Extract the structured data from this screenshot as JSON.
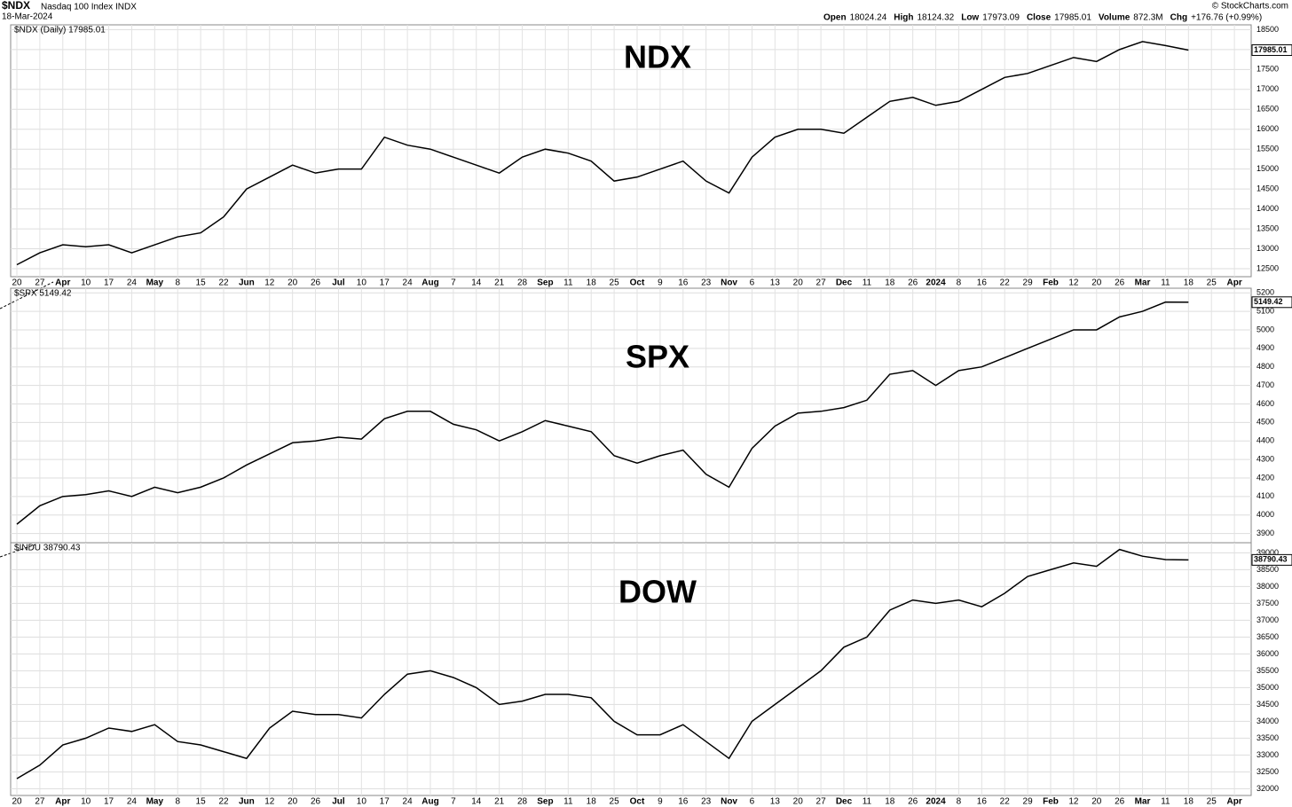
{
  "header": {
    "symbol": "$NDX",
    "name": "Nasdaq 100 Index",
    "exchange": "INDX",
    "date": "18-Mar-2024",
    "quote": [
      {
        "label": "Open",
        "value": "18024.24"
      },
      {
        "label": "High",
        "value": "18124.32"
      },
      {
        "label": "Low",
        "value": "17973.09"
      },
      {
        "label": "Close",
        "value": "17985.01"
      },
      {
        "label": "Volume",
        "value": "872.3M"
      },
      {
        "label": "Chg",
        "value": "+176.76 (+0.99%)"
      }
    ],
    "credit": "© StockCharts.com"
  },
  "chart_data": [
    {
      "type": "line",
      "title": "NDX",
      "legend": "$NDX (Daily) 17985.01",
      "last_label": "17985.01",
      "color": "#000000",
      "grid": true,
      "categories": [
        "20",
        "27",
        "Apr",
        "10",
        "17",
        "24",
        "May",
        "8",
        "15",
        "22",
        "Jun",
        "12",
        "20",
        "26",
        "Jul",
        "10",
        "17",
        "24",
        "Aug",
        "7",
        "14",
        "21",
        "28",
        "Sep",
        "11",
        "18",
        "25",
        "Oct",
        "9",
        "16",
        "23",
        "Nov",
        "6",
        "13",
        "20",
        "27",
        "Dec",
        "11",
        "18",
        "26",
        "2024",
        "8",
        "16",
        "22",
        "29",
        "Feb",
        "12",
        "20",
        "26",
        "Mar",
        "11",
        "18",
        "25",
        "Apr"
      ],
      "values": [
        12600,
        12900,
        13100,
        13050,
        13100,
        12900,
        13100,
        13300,
        13400,
        13800,
        14500,
        14800,
        15100,
        14900,
        15000,
        15000,
        15800,
        15600,
        15500,
        15300,
        15100,
        14900,
        15300,
        15500,
        15400,
        15200,
        14700,
        14800,
        15000,
        15200,
        14700,
        14400,
        15300,
        15800,
        16000,
        16000,
        15900,
        16300,
        16700,
        16800,
        16600,
        16700,
        17000,
        17300,
        17400,
        17600,
        17800,
        17700,
        18000,
        18200,
        18100,
        17985.01,
        null,
        null
      ],
      "ylim": [
        12300,
        18620
      ],
      "yticks": [
        12500,
        13000,
        13500,
        14000,
        14500,
        15000,
        15500,
        16000,
        16500,
        17000,
        17500,
        18000,
        18500
      ]
    },
    {
      "type": "line",
      "title": "SPX",
      "legend": "$SPX 5149.42",
      "last_label": "5149.42",
      "color": "#000000",
      "grid": true,
      "categories": [
        null,
        null,
        null,
        null,
        null,
        null,
        null,
        null,
        null,
        null,
        null,
        null,
        null,
        null,
        null,
        null,
        null,
        null,
        null,
        null,
        null,
        null,
        null,
        null,
        null,
        null,
        null,
        null,
        null,
        null,
        null,
        null,
        null,
        null,
        null,
        null,
        null,
        null,
        null,
        null,
        null,
        null,
        null,
        null,
        null,
        null,
        null,
        null,
        null,
        null,
        null,
        null,
        null,
        null
      ],
      "values": [
        3950,
        4050,
        4100,
        4110,
        4130,
        4100,
        4150,
        4120,
        4150,
        4200,
        4270,
        4330,
        4390,
        4400,
        4420,
        4410,
        4520,
        4560,
        4560,
        4490,
        4460,
        4400,
        4450,
        4510,
        4480,
        4450,
        4320,
        4280,
        4320,
        4350,
        4220,
        4150,
        4360,
        4480,
        4550,
        4560,
        4580,
        4620,
        4760,
        4780,
        4700,
        4780,
        4800,
        4850,
        4900,
        4950,
        5000,
        5000,
        5070,
        5100,
        5150,
        5149.42,
        null,
        null
      ],
      "ylim": [
        3850,
        5225
      ],
      "yticks": [
        3900,
        4000,
        4100,
        4200,
        4300,
        4400,
        4500,
        4600,
        4700,
        4800,
        4900,
        5000,
        5100,
        5200
      ]
    },
    {
      "type": "line",
      "title": "DOW",
      "legend": "$INDU 38790.43",
      "last_label": "38790.43",
      "color": "#000000",
      "grid": true,
      "categories": [
        "20",
        "27",
        "Apr",
        "10",
        "17",
        "24",
        "May",
        "8",
        "15",
        "22",
        "Jun",
        "12",
        "20",
        "26",
        "Jul",
        "10",
        "17",
        "24",
        "Aug",
        "7",
        "14",
        "21",
        "28",
        "Sep",
        "11",
        "18",
        "25",
        "Oct",
        "9",
        "16",
        "23",
        "Nov",
        "6",
        "13",
        "20",
        "27",
        "Dec",
        "11",
        "18",
        "26",
        "2024",
        "8",
        "16",
        "22",
        "29",
        "Feb",
        "12",
        "20",
        "26",
        "Mar",
        "11",
        "18",
        "25",
        "Apr"
      ],
      "values": [
        32300,
        32700,
        33300,
        33500,
        33800,
        33700,
        33900,
        33400,
        33300,
        33100,
        32900,
        33800,
        34300,
        34200,
        34200,
        34100,
        34800,
        35400,
        35500,
        35300,
        35000,
        34500,
        34600,
        34800,
        34800,
        34700,
        34000,
        33600,
        33600,
        33900,
        33400,
        32900,
        34000,
        34500,
        35000,
        35500,
        36200,
        36500,
        37300,
        37600,
        37500,
        37600,
        37400,
        37800,
        38300,
        38500,
        38700,
        38600,
        39100,
        38900,
        38800,
        38790.43,
        null,
        null
      ],
      "ylim": [
        31800,
        39300
      ],
      "yticks": [
        32000,
        32500,
        33000,
        33500,
        34000,
        34500,
        35000,
        35500,
        36000,
        36500,
        37000,
        37500,
        38000,
        38500,
        39000
      ]
    }
  ]
}
